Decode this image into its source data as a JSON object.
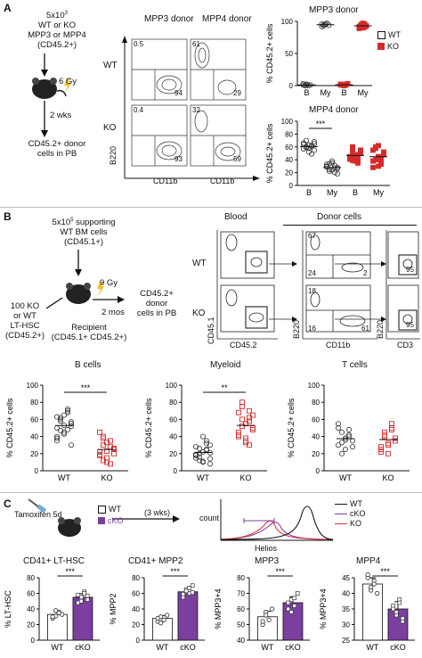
{
  "panelA": {
    "letter": "A",
    "donor_lines": [
      "5x10",
      "WT or KO",
      "MPP3 or MPP4",
      "(CD45.2+)"
    ],
    "donor_exp": "3",
    "dose": "6 Gy",
    "time": "2 wks",
    "readout": [
      "CD45.2+ donor",
      "cells in PB"
    ],
    "facs_headers": [
      "MPP3 donor",
      "MPP4 donor"
    ],
    "facs_rows": [
      "WT",
      "KO"
    ],
    "facs_vals": {
      "mpp3_wt": [
        "0.5",
        "94"
      ],
      "mpp3_ko": [
        "0.4",
        "93"
      ],
      "mpp4_wt": [
        "61",
        "29"
      ],
      "mpp4_ko": [
        "32",
        "59"
      ]
    },
    "facs_y": "B220",
    "facs_x": "CD11b"
  },
  "panelB": {
    "letter": "B",
    "support_lines": [
      "5x10",
      "WT BM cells",
      "(CD45.1+)"
    ],
    "support_exp": "5",
    "support_tail": " supporting",
    "left_lines": [
      "100 KO",
      "or WT",
      "LT-HSC",
      "(CD45.2+)"
    ],
    "dose": "9 Gy",
    "time": "2 mos",
    "recipient": [
      "Recipient",
      "(CD45.1+ CD45.2+)"
    ],
    "readout": [
      "CD45.2+",
      "donor",
      "cells in PB"
    ],
    "blood": "Blood",
    "donor_cells": "Donor cells",
    "rows": [
      "WT",
      "KO"
    ],
    "axis_y1": "CD45.1",
    "axis_x1": "CD45.2",
    "axis_y2": "B220",
    "axis_x2": "CD11b",
    "axis_y3": "B220",
    "axis_x3": "CD3",
    "vals": {
      "wt_b": [
        "67",
        "24",
        "2"
      ],
      "ko_b": [
        "18",
        "16",
        "61"
      ],
      "wt_t": "95",
      "ko_t": "95"
    }
  },
  "panelC": {
    "letter": "C",
    "treat": "Tamoxifen 5d",
    "legend": [
      "WT",
      "cKO"
    ],
    "time": "(3 wks)",
    "hist_ylabel": "count",
    "hist_xlabel": "Helios",
    "hist_legend": [
      "WT",
      "cKO",
      "KO"
    ],
    "hist_colors": [
      "#111111",
      "#7b3fa0",
      "#e0303a"
    ]
  },
  "chart_data": [
    {
      "type": "scatter",
      "title": "MPP3 donor",
      "ylabel": "% CD45.2+ cells",
      "categories": [
        "B",
        "My",
        "B",
        "My"
      ],
      "ylim": [
        0,
        100
      ],
      "yticks": [
        0,
        50,
        100
      ],
      "legend": [
        "WT",
        "KO"
      ],
      "groups": [
        "WT",
        "WT",
        "KO",
        "KO"
      ],
      "series": [
        {
          "values": [
            1,
            0,
            2,
            0,
            1,
            3,
            0,
            1
          ]
        },
        {
          "values": [
            96,
            93,
            95,
            97,
            94,
            92,
            95,
            96
          ]
        },
        {
          "values": [
            1,
            2,
            0,
            1,
            3,
            2,
            1,
            0
          ]
        },
        {
          "values": [
            92,
            95,
            90,
            96,
            93,
            89,
            94,
            97,
            91
          ]
        }
      ]
    },
    {
      "type": "scatter",
      "title": "MPP4 donor",
      "ylabel": "% CD45.2+ cells",
      "categories": [
        "B",
        "My",
        "B",
        "My"
      ],
      "ylim": [
        0,
        100
      ],
      "yticks": [
        0,
        20,
        40,
        60,
        80,
        100
      ],
      "significance": "***",
      "groups": [
        "WT",
        "WT",
        "KO",
        "KO"
      ],
      "series": [
        {
          "values": [
            64,
            70,
            58,
            61,
            55,
            66,
            59,
            52,
            62,
            68,
            57,
            60,
            63,
            49,
            65
          ]
        },
        {
          "values": [
            30,
            25,
            35,
            20,
            28,
            33,
            22,
            38,
            31,
            26,
            29,
            34,
            24,
            27,
            18
          ]
        },
        {
          "values": [
            45,
            52,
            38,
            48,
            55,
            41,
            60,
            46,
            35,
            50,
            43,
            57,
            47,
            40,
            53,
            44,
            39
          ]
        },
        {
          "values": [
            55,
            40,
            62,
            33,
            48,
            28,
            60,
            45,
            35,
            52,
            38,
            58,
            30,
            42
          ]
        }
      ]
    },
    {
      "type": "scatter",
      "title": "B cells",
      "ylabel": "% CD45.2+ cells",
      "categories": [
        "WT",
        "KO"
      ],
      "ylim": [
        0,
        100
      ],
      "yticks": [
        0,
        20,
        40,
        60,
        80,
        100
      ],
      "significance": "***",
      "series": [
        {
          "values": [
            50,
            62,
            45,
            70,
            55,
            40,
            58,
            65,
            48,
            52,
            35,
            60,
            43,
            68,
            57,
            38,
            47,
            53,
            72,
            30,
            63
          ]
        },
        {
          "values": [
            22,
            30,
            15,
            35,
            25,
            18,
            40,
            10,
            28,
            20,
            45,
            12,
            33,
            8,
            26,
            19,
            38,
            23
          ]
        }
      ]
    },
    {
      "type": "scatter",
      "title": "Myeloid",
      "ylabel": "% CD45.2+ cells",
      "categories": [
        "WT",
        "KO"
      ],
      "ylim": [
        0,
        100
      ],
      "yticks": [
        0,
        20,
        40,
        60,
        80,
        100
      ],
      "significance": "**",
      "series": [
        {
          "values": [
            15,
            20,
            10,
            25,
            30,
            18,
            12,
            22,
            35,
            8,
            28,
            16,
            40,
            24,
            14,
            19,
            26,
            11,
            32,
            21
          ]
        },
        {
          "values": [
            45,
            60,
            35,
            70,
            50,
            40,
            80,
            55,
            30,
            65,
            42,
            75,
            38,
            58,
            48,
            68,
            52,
            33,
            62
          ]
        }
      ]
    },
    {
      "type": "scatter",
      "title": "T cells",
      "ylabel": "% CD45.2+ cells",
      "categories": [
        "WT",
        "KO"
      ],
      "ylim": [
        0,
        100
      ],
      "yticks": [
        0,
        20,
        40,
        60,
        80,
        100
      ],
      "series": [
        {
          "values": [
            30,
            45,
            25,
            40,
            35,
            55,
            20,
            38,
            42,
            28,
            50,
            33,
            36,
            48
          ]
        },
        {
          "values": [
            28,
            42,
            20,
            50,
            35,
            25,
            45,
            30,
            55,
            38,
            22,
            40,
            32,
            48
          ]
        }
      ]
    },
    {
      "type": "bar",
      "title": "CD41+ LT-HSC",
      "ylabel": "% LT-HSC",
      "categories": [
        "WT",
        "cKO"
      ],
      "values": [
        33,
        55
      ],
      "ylim": [
        0,
        80
      ],
      "yticks": [
        0,
        20,
        40,
        60,
        80
      ],
      "significance": "***",
      "points": [
        [
          28,
          31,
          36,
          33,
          30,
          38,
          35
        ],
        [
          48,
          55,
          62,
          52,
          58,
          50,
          60,
          57
        ]
      ]
    },
    {
      "type": "bar",
      "title": "CD41+ MPP2",
      "ylabel": "% MPP2",
      "categories": [
        "WT",
        "cKO"
      ],
      "values": [
        28,
        62
      ],
      "ylim": [
        0,
        80
      ],
      "yticks": [
        0,
        20,
        40,
        60,
        80
      ],
      "significance": "***",
      "points": [
        [
          24,
          30,
          26,
          32,
          28,
          22
        ],
        [
          58,
          65,
          60,
          70,
          55,
          63,
          67,
          61,
          59
        ]
      ]
    },
    {
      "type": "bar",
      "title": "MPP3",
      "ylabel": "% MPP3+4",
      "categories": [
        "WT",
        "cKO"
      ],
      "values": [
        55,
        64
      ],
      "ylim": [
        40,
        80
      ],
      "yticks": [
        40,
        50,
        60,
        70,
        80
      ],
      "significance": "***",
      "points": [
        [
          50,
          58,
          53,
          60,
          52,
          56
        ],
        [
          60,
          66,
          62,
          70,
          64,
          58,
          67
        ]
      ]
    },
    {
      "type": "bar",
      "title": "MPP4",
      "ylabel": "% MPP3+4",
      "categories": [
        "WT",
        "cKO"
      ],
      "values": [
        43,
        35
      ],
      "ylim": [
        25,
        45
      ],
      "yticks": [
        25,
        30,
        35,
        40,
        45
      ],
      "significance": "***",
      "points": [
        [
          45,
          41,
          44,
          40,
          46,
          42,
          43
        ],
        [
          36,
          33,
          38,
          31,
          35,
          34,
          37,
          32
        ]
      ]
    }
  ]
}
